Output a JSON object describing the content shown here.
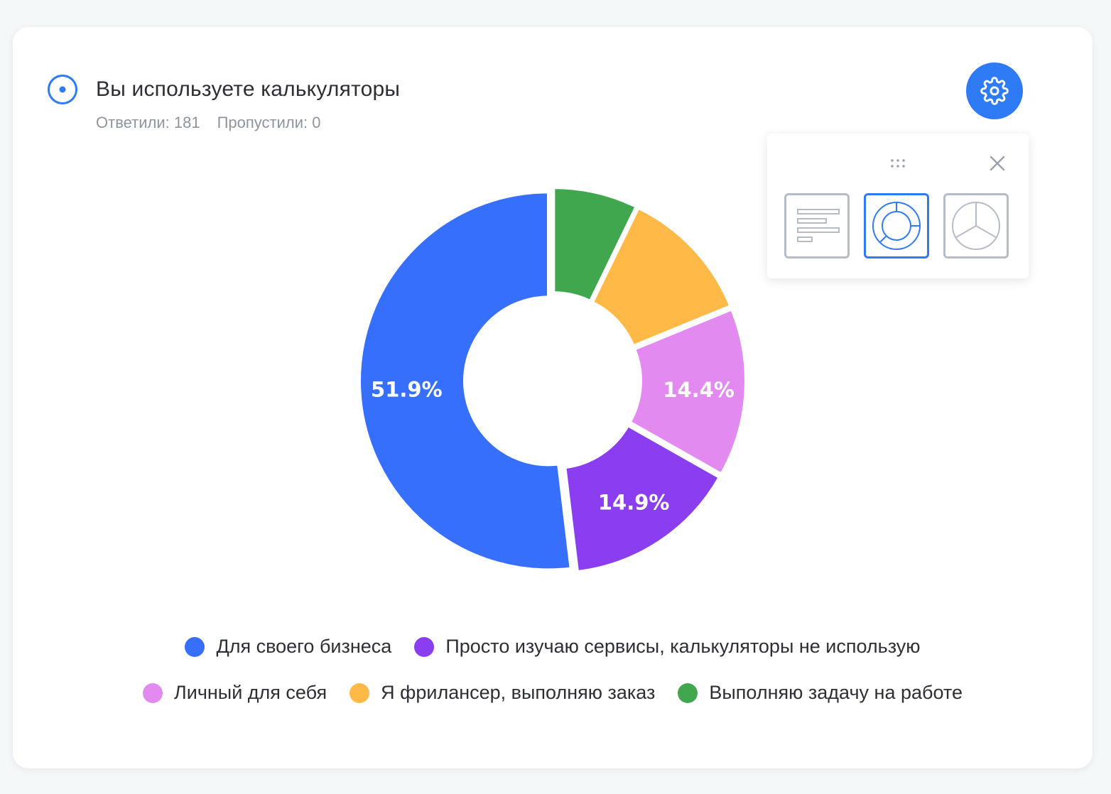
{
  "question": {
    "title": "Вы используете калькуляторы",
    "answered": "Ответили: 181",
    "skipped": "Пропустили: 0",
    "icon": "radio-target-icon"
  },
  "settings": {
    "icon": "gear-icon",
    "panel": {
      "drag_icon": "drag-dots-icon",
      "close_icon": "close-icon",
      "chart_types": [
        {
          "id": "bar",
          "icon": "bar-chart-icon",
          "active": false
        },
        {
          "id": "doughnut",
          "icon": "doughnut-chart-icon",
          "active": true
        },
        {
          "id": "pie",
          "icon": "pie-chart-icon",
          "active": false
        }
      ]
    }
  },
  "colors": {
    "accent": "#2f7bf5",
    "card": "#ffffff",
    "background": "#f5f8f9"
  },
  "chart_data": {
    "type": "pie",
    "variant": "doughnut",
    "categories": [
      "Для своего бизнеса",
      "Просто изучаю сервисы, калькуляторы не использую",
      "Личный для себя",
      "Я фрилансер, выполняю заказ",
      "Выполняю задачу на работе"
    ],
    "values": [
      51.9,
      14.9,
      14.4,
      11.6,
      7.2
    ],
    "data_labels": [
      "51.9%",
      "14.9%",
      "14.4%",
      "",
      ""
    ],
    "colors": [
      "#366ffc",
      "#8b3ef0",
      "#e28af0",
      "#ffb946",
      "#40a74e"
    ],
    "direction": "counterclockwise from top",
    "legend_rows": [
      [
        0,
        1
      ],
      [
        2,
        3,
        4
      ]
    ],
    "legend_position": "bottom"
  }
}
